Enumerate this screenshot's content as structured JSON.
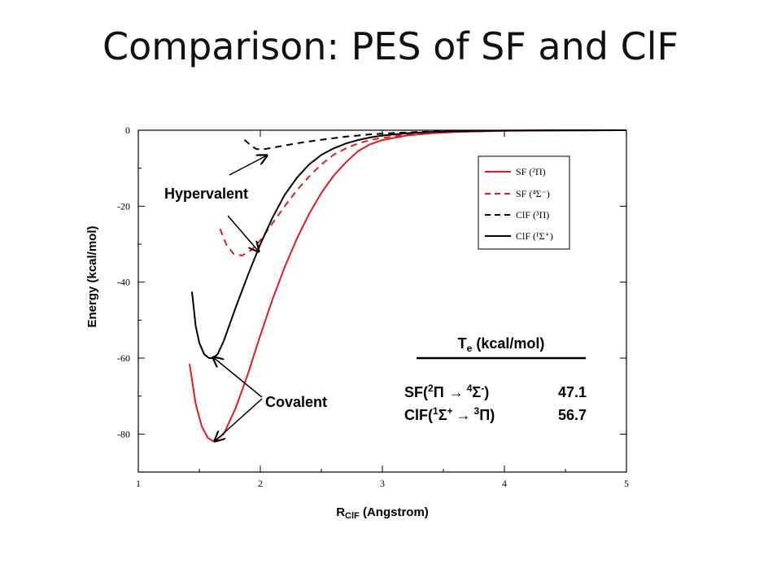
{
  "slide": {
    "title": "Comparison: PES of  SF and ClF"
  },
  "chart_data": {
    "type": "line",
    "title": "",
    "xlabel": {
      "main": "R",
      "sub": "ClF",
      "rest": " (Angstrom)"
    },
    "ylabel": "Energy (kcal/mol)",
    "xlim": [
      1,
      5
    ],
    "ylim": [
      -90,
      0
    ],
    "x_ticks": [
      1,
      2,
      3,
      4,
      5
    ],
    "y_ticks": [
      0,
      -20,
      -40,
      -60,
      -80
    ],
    "legend_position": "top-right",
    "series": [
      {
        "name": "SF (²Π)",
        "color": "#e31a1c",
        "dash": "solid",
        "x": [
          1.42,
          1.47,
          1.52,
          1.57,
          1.62,
          1.7,
          1.8,
          1.9,
          2.0,
          2.1,
          2.2,
          2.3,
          2.4,
          2.5,
          2.6,
          2.7,
          2.8,
          2.9,
          3.0,
          3.2,
          3.4,
          3.6,
          4.0,
          4.5,
          5.0
        ],
        "y": [
          -61.5,
          -72,
          -78,
          -81,
          -82,
          -80,
          -73,
          -64,
          -54,
          -44.5,
          -36,
          -28.5,
          -22,
          -16.5,
          -12,
          -8.5,
          -5.5,
          -3.7,
          -2.6,
          -1.4,
          -0.8,
          -0.45,
          -0.15,
          -0.05,
          0
        ]
      },
      {
        "name": "SF (⁴Σ⁻)",
        "color": "#e31a1c",
        "dash": "dashed",
        "x": [
          1.67,
          1.72,
          1.78,
          1.85,
          1.93,
          2.0,
          2.1,
          2.2,
          2.3,
          2.4,
          2.5,
          2.6,
          2.7,
          2.8,
          2.9,
          3.0,
          3.2,
          3.4,
          3.6,
          4.0,
          4.5,
          5.0
        ],
        "y": [
          -26,
          -30,
          -32.5,
          -33,
          -31.5,
          -29,
          -24.5,
          -20,
          -15.8,
          -12.2,
          -9,
          -6.5,
          -4.8,
          -3.5,
          -2.6,
          -2,
          -1.2,
          -0.7,
          -0.4,
          -0.1,
          0,
          0
        ]
      },
      {
        "name": "ClF (³Π)",
        "color": "#000000",
        "dash": "dashed",
        "x": [
          1.87,
          1.92,
          1.97,
          2.03,
          2.1,
          2.2,
          2.35,
          2.5,
          2.7,
          2.9,
          3.1,
          3.4,
          3.8,
          4.3,
          5.0
        ],
        "y": [
          -2.5,
          -4,
          -5,
          -5,
          -4.6,
          -4,
          -3.2,
          -2.5,
          -1.7,
          -1.1,
          -0.7,
          -0.35,
          -0.15,
          -0.05,
          0
        ]
      },
      {
        "name": "ClF (¹Σ⁺)",
        "color": "#000000",
        "dash": "solid",
        "x": [
          1.44,
          1.47,
          1.5,
          1.54,
          1.58,
          1.61,
          1.65,
          1.7,
          1.8,
          1.9,
          2.0,
          2.1,
          2.2,
          2.3,
          2.4,
          2.5,
          2.6,
          2.7,
          2.8,
          2.9,
          3.0,
          3.2,
          3.4,
          3.6,
          4.0,
          4.5,
          5.0
        ],
        "y": [
          -42.5,
          -51.5,
          -56,
          -59,
          -60,
          -60,
          -59,
          -55.5,
          -46.5,
          -38,
          -30,
          -23,
          -17,
          -12.5,
          -9,
          -6.5,
          -4.8,
          -3.5,
          -2.6,
          -1.9,
          -1.4,
          -0.8,
          -0.45,
          -0.25,
          -0.08,
          -0.02,
          0
        ]
      }
    ],
    "annotations": [
      {
        "text": "Hypervalent"
      },
      {
        "text": "Covalent"
      }
    ],
    "te_table": {
      "heading": {
        "main": "T",
        "sub": "e",
        "rest": " (kcal/mol)"
      },
      "rows": [
        {
          "pre": "SF(",
          "s1": "2",
          "g1": "Π",
          "arrow": "→",
          "s2": "4",
          "g2": "Σ",
          "s3": "-",
          "post": ")",
          "value": "47.1"
        },
        {
          "pre": "ClF(",
          "s1": "1",
          "g1": "Σ",
          "s3a": "+",
          "arrow": "→",
          "s2": "3",
          "g2": "Π",
          "s3": "",
          "post": ")",
          "value": "56.7"
        }
      ]
    }
  }
}
